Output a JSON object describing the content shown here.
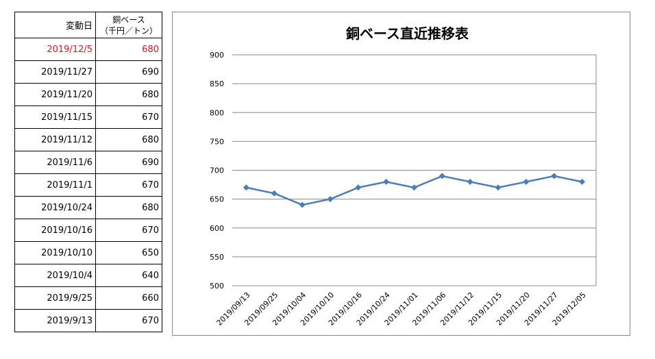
{
  "table": {
    "header": {
      "date": "変動日",
      "value_line1": "銅ベース",
      "value_line2": "（千円／トン）"
    },
    "rows": [
      {
        "date": "2019/12/5",
        "value": "680",
        "highlight": true
      },
      {
        "date": "2019/11/27",
        "value": "690"
      },
      {
        "date": "2019/11/20",
        "value": "680"
      },
      {
        "date": "2019/11/15",
        "value": "670"
      },
      {
        "date": "2019/11/12",
        "value": "680"
      },
      {
        "date": "2019/11/6",
        "value": "690"
      },
      {
        "date": "2019/11/1",
        "value": "670"
      },
      {
        "date": "2019/10/24",
        "value": "680"
      },
      {
        "date": "2019/10/16",
        "value": "670"
      },
      {
        "date": "2019/10/10",
        "value": "650"
      },
      {
        "date": "2019/10/4",
        "value": "640"
      },
      {
        "date": "2019/9/25",
        "value": "660"
      },
      {
        "date": "2019/9/13",
        "value": "670"
      }
    ],
    "highlight_color": "#e0141e"
  },
  "chart_data": {
    "type": "line",
    "title": "銅ベース直近推移表",
    "xlabel": "",
    "ylabel": "",
    "categories": [
      "2019/09/13",
      "2019/09/25",
      "2019/10/04",
      "2019/10/10",
      "2019/10/16",
      "2019/10/24",
      "2019/11/01",
      "2019/11/06",
      "2019/11/12",
      "2019/11/15",
      "2019/11/20",
      "2019/11/27",
      "2019/12/05"
    ],
    "series": [
      {
        "values": [
          670,
          660,
          640,
          650,
          670,
          680,
          670,
          690,
          680,
          670,
          680,
          690,
          680
        ],
        "color": "#4a7ebb"
      }
    ],
    "ylim": [
      500,
      900
    ],
    "yticks": [
      500,
      550,
      600,
      650,
      700,
      750,
      800,
      850,
      900
    ],
    "grid": true,
    "legend": "none",
    "marker": "diamond"
  }
}
